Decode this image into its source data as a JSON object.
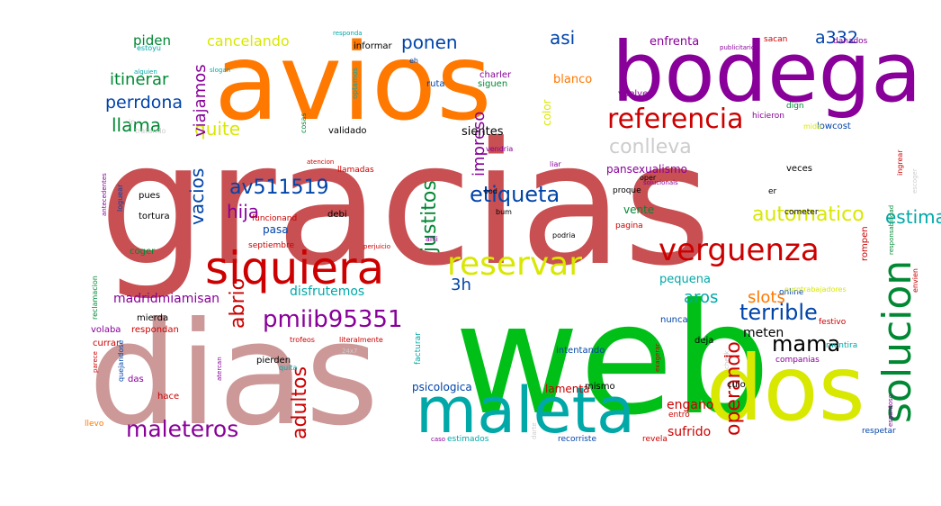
{
  "words": [
    {
      "text": "gracias",
      "weight": 1.0,
      "color": "#c84f52",
      "rotate": false
    },
    {
      "text": "web",
      "weight": 0.8,
      "color": "#00c018",
      "rotate": false
    },
    {
      "text": "dias",
      "weight": 0.78,
      "color": "#cc9898",
      "rotate": false
    },
    {
      "text": "avios",
      "weight": 0.62,
      "color": "#ff7800",
      "rotate": false
    },
    {
      "text": "bodega",
      "weight": 0.55,
      "color": "#880099",
      "rotate": false
    },
    {
      "text": "dos",
      "weight": 0.5,
      "color": "#d8e800",
      "rotate": false
    },
    {
      "text": "maleta",
      "weight": 0.42,
      "color": "#00a8a8",
      "rotate": false
    },
    {
      "text": "siquiera",
      "weight": 0.32,
      "color": "#cc0000",
      "rotate": false
    },
    {
      "text": "solucion",
      "weight": 0.3,
      "color": "#008833",
      "rotate": true
    },
    {
      "text": "verguenza",
      "weight": 0.22,
      "color": "#cc0000",
      "rotate": false
    },
    {
      "text": "reservar",
      "weight": 0.22,
      "color": "#d8e800",
      "rotate": false
    },
    {
      "text": "referencia",
      "weight": 0.2,
      "color": "#cc0000",
      "rotate": false
    },
    {
      "text": "maleteros",
      "weight": 0.18,
      "color": "#880099",
      "rotate": false
    },
    {
      "text": "etiqueta",
      "weight": 0.16,
      "color": "#0044aa",
      "rotate": false
    },
    {
      "text": "pmiib95351",
      "weight": 0.16,
      "color": "#880099",
      "rotate": false
    },
    {
      "text": "terrible",
      "weight": 0.16,
      "color": "#0044aa",
      "rotate": false
    },
    {
      "text": "mama",
      "weight": 0.16,
      "color": "#000000",
      "rotate": false
    },
    {
      "text": "abrio",
      "weight": 0.15,
      "color": "#cc0000",
      "rotate": true
    },
    {
      "text": "justitos",
      "weight": 0.15,
      "color": "#008833",
      "rotate": true
    },
    {
      "text": "automatico",
      "weight": 0.15,
      "color": "#d8e800",
      "rotate": false
    },
    {
      "text": "estimada",
      "weight": 0.14,
      "color": "#00a8a8",
      "rotate": false
    },
    {
      "text": "operando",
      "weight": 0.14,
      "color": "#cc0000",
      "rotate": true
    },
    {
      "text": "adultos",
      "weight": 0.14,
      "color": "#cc0000",
      "rotate": true
    },
    {
      "text": "av511519",
      "weight": 0.14,
      "color": "#0044aa",
      "rotate": false
    },
    {
      "text": "conlleva",
      "weight": 0.14,
      "color": "#cccccc",
      "rotate": false
    },
    {
      "text": "llama",
      "weight": 0.14,
      "color": "#008833",
      "rotate": false
    },
    {
      "text": "hija",
      "weight": 0.14,
      "color": "#880099",
      "rotate": false
    },
    {
      "text": "vacios",
      "weight": 0.14,
      "color": "#0044aa",
      "rotate": true
    },
    {
      "text": "quite",
      "weight": 0.13,
      "color": "#d8e800",
      "rotate": false
    },
    {
      "text": "impreso",
      "weight": 0.13,
      "color": "#880099",
      "rotate": true
    },
    {
      "text": "viajamos",
      "weight": 0.13,
      "color": "#880099",
      "rotate": true
    },
    {
      "text": "perrdona",
      "weight": 0.12,
      "color": "#0044aa",
      "rotate": false
    },
    {
      "text": "itinerar",
      "weight": 0.12,
      "color": "#008833",
      "rotate": false
    },
    {
      "text": "asi",
      "weight": 0.12,
      "color": "#0044aa",
      "rotate": false
    },
    {
      "text": "a332",
      "weight": 0.12,
      "color": "#0044aa",
      "rotate": false
    },
    {
      "text": "aros",
      "weight": 0.12,
      "color": "#00a8a8",
      "rotate": false
    },
    {
      "text": "slots",
      "weight": 0.12,
      "color": "#ff7800",
      "rotate": false
    },
    {
      "text": "ponen",
      "weight": 0.12,
      "color": "#0044aa",
      "rotate": false
    },
    {
      "text": "3h",
      "weight": 0.12,
      "color": "#0044aa",
      "rotate": false
    },
    {
      "text": "cancelando",
      "weight": 0.11,
      "color": "#d8e800",
      "rotate": false
    },
    {
      "text": "madridmiamisan",
      "weight": 0.1,
      "color": "#880099",
      "rotate": false
    },
    {
      "text": "disfrutemos",
      "weight": 0.1,
      "color": "#00a8a8",
      "rotate": false
    },
    {
      "text": "sufrido",
      "weight": 0.1,
      "color": "#cc0000",
      "rotate": false
    },
    {
      "text": "meten",
      "weight": 0.1,
      "color": "#000000",
      "rotate": false
    },
    {
      "text": "engano",
      "weight": 0.09,
      "color": "#cc0000",
      "rotate": false
    },
    {
      "text": "piden",
      "weight": 0.09,
      "color": "#008833",
      "rotate": false
    },
    {
      "text": "enfrenta",
      "weight": 0.09,
      "color": "#880099",
      "rotate": false
    },
    {
      "text": "blanco",
      "weight": 0.09,
      "color": "#ff7800",
      "rotate": false
    },
    {
      "text": "sientes",
      "weight": 0.09,
      "color": "#000000",
      "rotate": false
    },
    {
      "text": "pansexualismo",
      "weight": 0.08,
      "color": "#880099",
      "rotate": false
    },
    {
      "text": "pequena",
      "weight": 0.08,
      "color": "#00a8a8",
      "rotate": false
    },
    {
      "text": "psicologica",
      "weight": 0.08,
      "color": "#0044aa",
      "rotate": false
    },
    {
      "text": "lamenta",
      "weight": 0.08,
      "color": "#cc0000",
      "rotate": false
    },
    {
      "text": "pasa",
      "weight": 0.08,
      "color": "#0044aa",
      "rotate": false
    },
    {
      "text": "vente",
      "weight": 0.08,
      "color": "#008833",
      "rotate": false
    },
    {
      "text": "color",
      "weight": 0.07,
      "color": "#d8e800",
      "rotate": true
    },
    {
      "text": "informar",
      "weight": 0.07,
      "color": "#000000",
      "rotate": false
    },
    {
      "text": "siguen",
      "weight": 0.06,
      "color": "#008833",
      "rotate": false
    },
    {
      "text": "vuelve",
      "weight": 0.06,
      "color": "#880099",
      "rotate": false
    },
    {
      "text": "ruta",
      "weight": 0.06,
      "color": "#0044aa",
      "rotate": false
    },
    {
      "text": "charler",
      "weight": 0.06,
      "color": "#880099",
      "rotate": false
    },
    {
      "text": "validado",
      "weight": 0.06,
      "color": "#000000",
      "rotate": false
    },
    {
      "text": "mierda",
      "weight": 0.06,
      "color": "#000000",
      "rotate": false
    },
    {
      "text": "volaba",
      "weight": 0.06,
      "color": "#880099",
      "rotate": false
    },
    {
      "text": "respondan",
      "weight": 0.06,
      "color": "#cc0000",
      "rotate": false
    },
    {
      "text": "currar",
      "weight": 0.06,
      "color": "#cc0000",
      "rotate": false
    },
    {
      "text": "pierden",
      "weight": 0.06,
      "color": "#000000",
      "rotate": false
    },
    {
      "text": "hace",
      "weight": 0.06,
      "color": "#cc0000",
      "rotate": false
    },
    {
      "text": "llevo",
      "weight": 0.06,
      "color": "#ff7800",
      "rotate": false
    },
    {
      "text": "das",
      "weight": 0.06,
      "color": "#880099",
      "rotate": false
    },
    {
      "text": "funcionand",
      "weight": 0.06,
      "color": "#cc0000",
      "rotate": false
    },
    {
      "text": "debi",
      "weight": 0.06,
      "color": "#000000",
      "rotate": false
    },
    {
      "text": "septiembre",
      "weight": 0.06,
      "color": "#cc0000",
      "rotate": false
    },
    {
      "text": "tortura",
      "weight": 0.06,
      "color": "#000000",
      "rotate": false
    },
    {
      "text": "pues",
      "weight": 0.06,
      "color": "#000000",
      "rotate": false
    },
    {
      "text": "coger",
      "weight": 0.06,
      "color": "#008833",
      "rotate": false
    },
    {
      "text": "llamadas",
      "weight": 0.06,
      "color": "#cc0000",
      "rotate": false
    },
    {
      "text": "intentando",
      "weight": 0.06,
      "color": "#0044aa",
      "rotate": false
    },
    {
      "text": "nunca",
      "weight": 0.06,
      "color": "#0044aa",
      "rotate": false
    },
    {
      "text": "deja",
      "weight": 0.06,
      "color": "#000000",
      "rotate": false
    },
    {
      "text": "culo",
      "weight": 0.06,
      "color": "#000000",
      "rotate": false
    },
    {
      "text": "companias",
      "weight": 0.06,
      "color": "#880099",
      "rotate": false
    },
    {
      "text": "online",
      "weight": 0.06,
      "color": "#0044aa",
      "rotate": false
    },
    {
      "text": "eurotrabajadores",
      "weight": 0.06,
      "color": "#d8e800",
      "rotate": false
    },
    {
      "text": "mentira",
      "weight": 0.06,
      "color": "#00a8a8",
      "rotate": false
    },
    {
      "text": "entro",
      "weight": 0.06,
      "color": "#cc0000",
      "rotate": false
    },
    {
      "text": "revela",
      "weight": 0.06,
      "color": "#cc0000",
      "rotate": false
    },
    {
      "text": "recorriste",
      "weight": 0.06,
      "color": "#0044aa",
      "rotate": false
    },
    {
      "text": "estimados",
      "weight": 0.06,
      "color": "#00a8a8",
      "rotate": false
    },
    {
      "text": "respetar",
      "weight": 0.06,
      "color": "#0044aa",
      "rotate": false
    },
    {
      "text": "mismo",
      "weight": 0.06,
      "color": "#000000",
      "rotate": false
    },
    {
      "text": "veces",
      "weight": 0.06,
      "color": "#000000",
      "rotate": false
    },
    {
      "text": "cometer",
      "weight": 0.06,
      "color": "#000000",
      "rotate": false
    },
    {
      "text": "rompen",
      "weight": 0.06,
      "color": "#cc0000",
      "rotate": true
    },
    {
      "text": "lowcost",
      "weight": 0.06,
      "color": "#0044aa",
      "rotate": false
    },
    {
      "text": "hicieron",
      "weight": 0.06,
      "color": "#880099",
      "rotate": false
    },
    {
      "text": "dign",
      "weight": 0.06,
      "color": "#008833",
      "rotate": false
    },
    {
      "text": "sacan",
      "weight": 0.06,
      "color": "#cc0000",
      "rotate": false
    },
    {
      "text": "danados",
      "weight": 0.06,
      "color": "#880099",
      "rotate": false
    },
    {
      "text": "facturar",
      "weight": 0.06,
      "color": "#00a8a8",
      "rotate": true
    },
    {
      "text": "festivo",
      "weight": 0.06,
      "color": "#cc0000",
      "rotate": false
    },
    {
      "text": "envien",
      "weight": 0.05,
      "color": "#cc0000",
      "rotate": true
    },
    {
      "text": "ingrear",
      "weight": 0.05,
      "color": "#cc0000",
      "rotate": true
    },
    {
      "text": "proque",
      "weight": 0.05,
      "color": "#000000",
      "rotate": false
    },
    {
      "text": "pagina",
      "weight": 0.05,
      "color": "#cc0000",
      "rotate": false
    },
    {
      "text": "podria",
      "weight": 0.05,
      "color": "#000000",
      "rotate": false
    },
    {
      "text": "oper",
      "weight": 0.05,
      "color": "#000000",
      "rotate": false
    },
    {
      "text": "er",
      "weight": 0.05,
      "color": "#000000",
      "rotate": false
    },
    {
      "text": "ood",
      "weight": 0.05,
      "color": "#000000",
      "rotate": false
    },
    {
      "text": "aiiii",
      "weight": 0.05,
      "color": "#880099",
      "rotate": false
    },
    {
      "text": "bum",
      "weight": 0.05,
      "color": "#000000",
      "rotate": false
    },
    {
      "text": "vendria",
      "weight": 0.05,
      "color": "#880099",
      "rotate": false
    },
    {
      "text": "liar",
      "weight": 0.05,
      "color": "#880099",
      "rotate": false
    },
    {
      "text": "mido",
      "weight": 0.05,
      "color": "#d8e800",
      "rotate": false
    },
    {
      "text": "tratando",
      "weight": 0.05,
      "color": "#cccccc",
      "rotate": false
    },
    {
      "text": "in",
      "weight": 0.05,
      "color": "#cccccc",
      "rotate": false
    },
    {
      "text": "cosas",
      "weight": 0.05,
      "color": "#008833",
      "rotate": true
    },
    {
      "text": "optamos",
      "weight": 0.05,
      "color": "#00a8a8",
      "rotate": true
    },
    {
      "text": "eh",
      "weight": 0.05,
      "color": "#0044aa",
      "rotate": false
    },
    {
      "text": "estoyu",
      "weight": 0.05,
      "color": "#00a8a8",
      "rotate": false
    },
    {
      "text": "responda",
      "weight": 0.05,
      "color": "#00a8a8",
      "rotate": false
    },
    {
      "text": "slogan",
      "weight": 0.05,
      "color": "#00a8a8",
      "rotate": false
    },
    {
      "text": "alguien",
      "weight": 0.05,
      "color": "#00a8a8",
      "rotate": false
    },
    {
      "text": "publicitario",
      "weight": 0.05,
      "color": "#880099",
      "rotate": false
    },
    {
      "text": "atencion",
      "weight": 0.05,
      "color": "#cc0000",
      "rotate": false
    },
    {
      "text": "solucionals",
      "weight": 0.05,
      "color": "#880099",
      "rotate": false
    },
    {
      "text": "perjuicio",
      "weight": 0.05,
      "color": "#cc0000",
      "rotate": false
    },
    {
      "text": "loguear",
      "weight": 0.05,
      "color": "#0044aa",
      "rotate": true
    },
    {
      "text": "antecedentes",
      "weight": 0.05,
      "color": "#880099",
      "rotate": true
    },
    {
      "text": "reclamacion",
      "weight": 0.05,
      "color": "#008833",
      "rotate": true
    },
    {
      "text": "parece",
      "weight": 0.05,
      "color": "#cc0000",
      "rotate": true
    },
    {
      "text": "trofeos",
      "weight": 0.05,
      "color": "#cc0000",
      "rotate": false
    },
    {
      "text": "literalmente",
      "weight": 0.05,
      "color": "#cc0000",
      "rotate": false
    },
    {
      "text": "24x7",
      "weight": 0.05,
      "color": "#cccccc",
      "rotate": false
    },
    {
      "text": "quejandose",
      "weight": 0.05,
      "color": "#0044aa",
      "rotate": true
    },
    {
      "text": "atercan",
      "weight": 0.05,
      "color": "#880099",
      "rotate": true
    },
    {
      "text": "quita",
      "weight": 0.05,
      "color": "#00a8a8",
      "rotate": false
    },
    {
      "text": "darte",
      "weight": 0.05,
      "color": "#cccccc",
      "rotate": true
    },
    {
      "text": "exagerar",
      "weight": 0.05,
      "color": "#cc0000",
      "rotate": true
    },
    {
      "text": "check",
      "weight": 0.05,
      "color": "#cccccc",
      "rotate": true
    },
    {
      "text": "espantoso",
      "weight": 0.05,
      "color": "#880099",
      "rotate": true
    },
    {
      "text": "responsabilidad",
      "weight": 0.05,
      "color": "#008833",
      "rotate": true
    },
    {
      "text": "escoger",
      "weight": 0.05,
      "color": "#cccccc",
      "rotate": true
    },
    {
      "text": "caso",
      "weight": 0.05,
      "color": "#880099",
      "rotate": false
    }
  ]
}
